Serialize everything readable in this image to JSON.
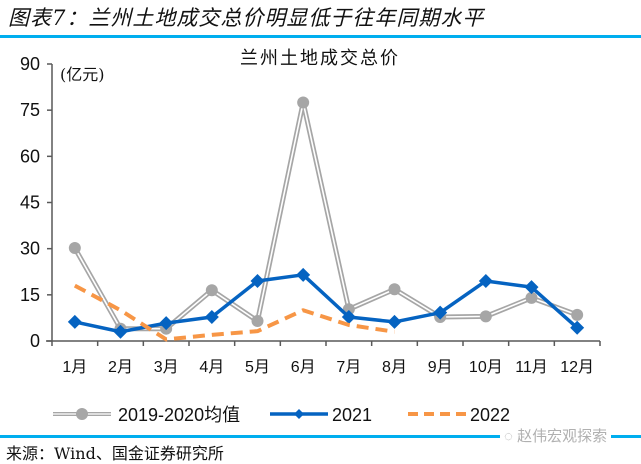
{
  "figure": {
    "title": "图表7：兰州土地成交总价明显低于往年同期水平",
    "source": "来源：Wind、国金证券研究所",
    "watermark": "赵伟宏观探索",
    "rule_color": "#00AEEF"
  },
  "chart_data": {
    "type": "line",
    "title": "兰州土地成交总价",
    "xlabel": "",
    "ylabel": "(亿元)",
    "ylim": [
      0,
      90
    ],
    "yticks": [
      0,
      15,
      30,
      45,
      60,
      75,
      90
    ],
    "grid": false,
    "legend_position": "bottom",
    "categories": [
      "1月",
      "2月",
      "3月",
      "4月",
      "5月",
      "6月",
      "7月",
      "8月",
      "9月",
      "10月",
      "11月",
      "12月"
    ],
    "series": [
      {
        "name": "2019-2020均值",
        "color": "#A6A6A6",
        "style": "double-line-circle",
        "values": [
          30.2,
          4.0,
          4.0,
          16.5,
          6.5,
          77.5,
          10.3,
          16.8,
          7.8,
          8.0,
          14.0,
          8.5
        ]
      },
      {
        "name": "2021",
        "color": "#0563C1",
        "style": "solid-diamond",
        "values": [
          6.2,
          3.0,
          5.8,
          7.8,
          19.5,
          21.5,
          7.8,
          6.2,
          9.2,
          19.5,
          17.5,
          4.3
        ]
      },
      {
        "name": "2022",
        "color": "#F79646",
        "style": "dashed",
        "values": [
          18.0,
          10.0,
          0.5,
          2.0,
          3.2,
          10.0,
          5.2,
          3.0
        ]
      }
    ]
  }
}
